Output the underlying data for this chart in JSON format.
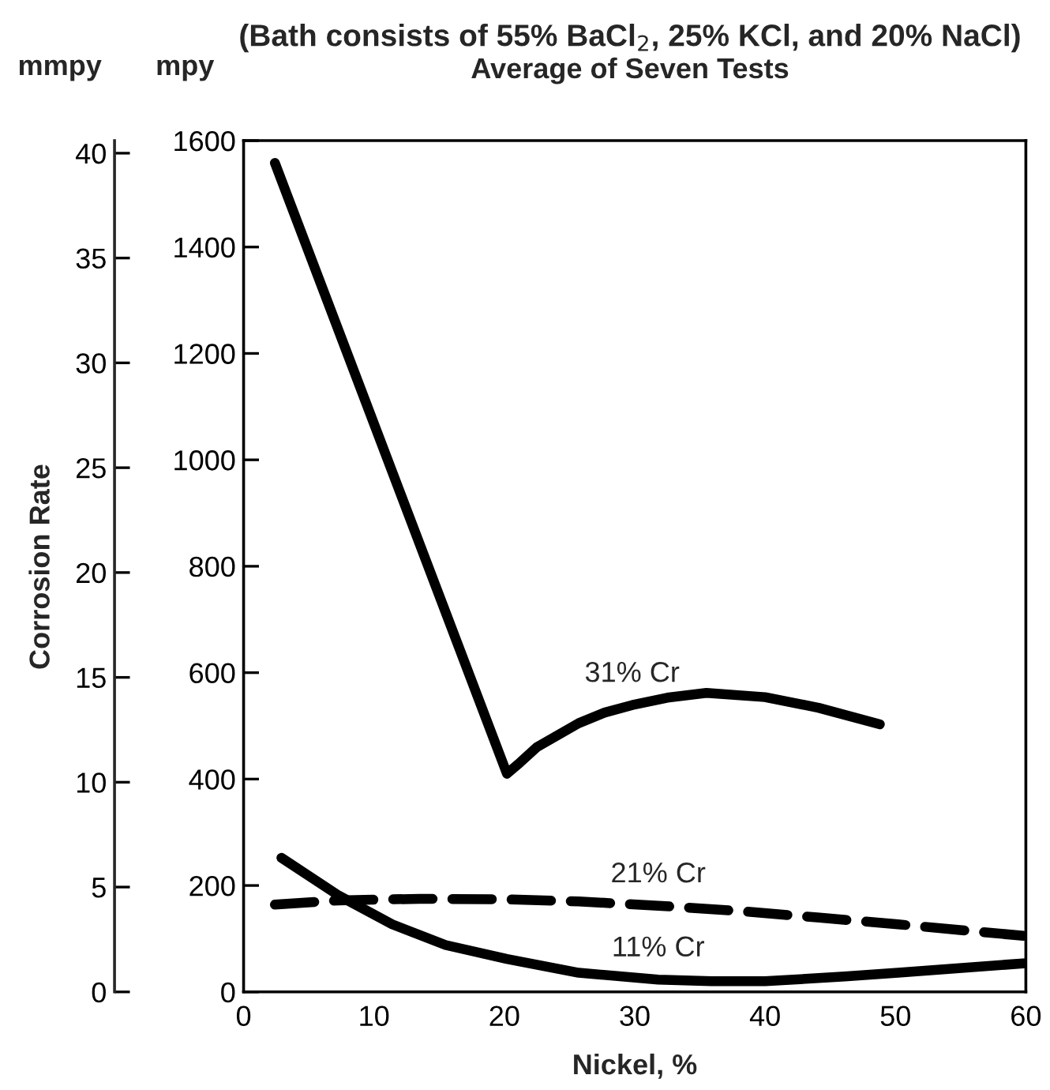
{
  "chart_data": {
    "type": "line",
    "title": "(Bath consists of 55% BaCl$_{2}$, 25% KCl, and 20% NaCl)",
    "subtitle": "Average of Seven Tests",
    "xlabel": "Nickel, %",
    "ylabel": "mpy",
    "y2label": "mmpy",
    "xlim": [
      0,
      60
    ],
    "xticks": [
      0,
      10,
      20,
      30,
      40,
      50,
      60
    ],
    "ylim": [
      0,
      1600
    ],
    "yticks": [
      0,
      200,
      400,
      600,
      800,
      1000,
      1200,
      1400,
      1600
    ],
    "y2lim": [
      0,
      40.6
    ],
    "y2ticks": [
      0,
      5,
      10,
      15,
      20,
      25,
      30,
      35,
      40
    ],
    "grid": false,
    "legend": false,
    "series": [
      {
        "name": "31% Cr",
        "color": "#000000",
        "line_style": "solid",
        "x": [
          2.4,
          20.2,
          21.2,
          22.5,
          25.7,
          27.7,
          29.8,
          32.5,
          35.5,
          40.0,
          44.1,
          48.8
        ],
        "values": [
          1558,
          410,
          431,
          460,
          505,
          525,
          539,
          553,
          562,
          554,
          534,
          503
        ]
      },
      {
        "name": "21% Cr",
        "color": "#000000",
        "line_style": "dashed",
        "x": [
          2.4,
          7.3,
          13.5,
          20,
          25.7,
          31.8,
          38,
          44,
          50.2,
          60
        ],
        "values": [
          164,
          172,
          175,
          174,
          170,
          162,
          152,
          140,
          127,
          105
        ]
      },
      {
        "name": "11% Cr",
        "color": "#000000",
        "line_style": "solid",
        "x": [
          2.9,
          7.3,
          11.4,
          15.5,
          20.2,
          25.7,
          31.8,
          35.9,
          40,
          46.1,
          50.2,
          60
        ],
        "values": [
          252,
          181,
          127,
          88,
          62,
          36,
          23,
          20,
          20,
          29,
          36,
          54
        ]
      }
    ],
    "annotations": [
      "Corrosion Rate"
    ]
  }
}
